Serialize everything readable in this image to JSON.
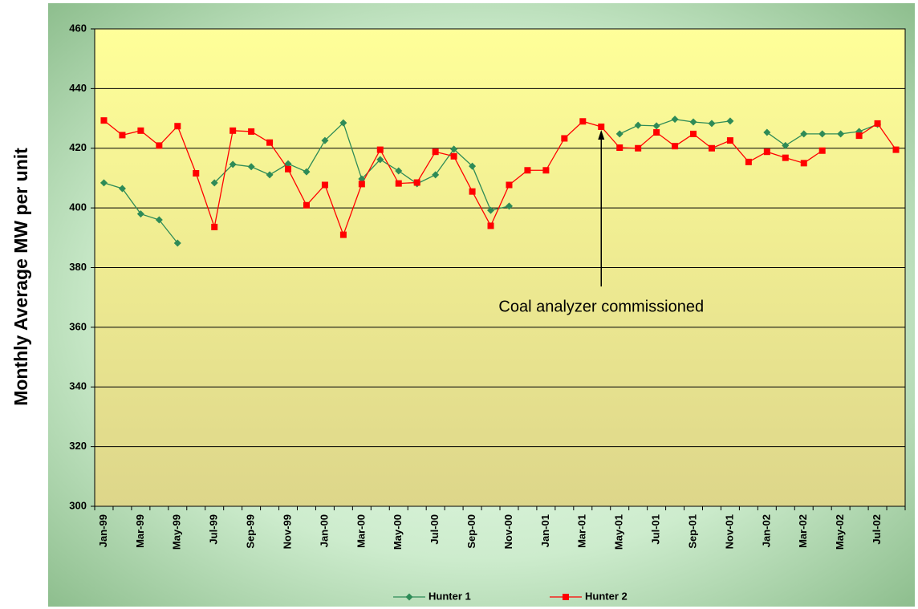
{
  "chart_data": {
    "type": "line",
    "y_label": "Monthly Average MW per unit",
    "annotation": "Coal analyzer commissioned",
    "categories": [
      "Jan-99",
      null,
      "Mar-99",
      null,
      "May-99",
      null,
      "Jul-99",
      null,
      "Sep-99",
      null,
      "Nov-99",
      null,
      "Jan-00",
      null,
      "Mar-00",
      null,
      "May-00",
      null,
      "Jul-00",
      null,
      "Sep-00",
      null,
      "Nov-00",
      null,
      "Jan-01",
      null,
      "Mar-01",
      null,
      "May-01",
      null,
      "Jul-01",
      null,
      "Sep-01",
      null,
      "Nov-01",
      null,
      "Jan-02",
      null,
      "Mar-02",
      null,
      "May-02",
      null,
      "Jul-02",
      null
    ],
    "series": [
      {
        "name": "Hunter 1",
        "color": "#2e8b57",
        "marker": "diamond",
        "values": [
          408.4,
          406.5,
          398,
          396,
          388.2,
          null,
          408.4,
          414.6,
          413.8,
          411.1,
          414.8,
          412.1,
          422.6,
          428.5,
          409.7,
          416.2,
          412.4,
          408.1,
          411.1,
          419.7,
          414,
          399.2,
          400.6,
          null,
          null,
          null,
          null,
          null,
          424.8,
          427.7,
          427.5,
          429.7,
          428.8,
          428.3,
          429.1,
          null,
          425.3,
          420.9,
          424.8,
          424.8,
          424.8,
          425.6,
          428,
          null
        ]
      },
      {
        "name": "Hunter 2",
        "color": "#ff0000",
        "marker": "square",
        "values": [
          429.3,
          424.4,
          425.9,
          420.9,
          427.4,
          411.6,
          393.6,
          425.9,
          425.6,
          421.9,
          413,
          400.9,
          407.7,
          391,
          408,
          419.5,
          408.2,
          408.5,
          418.8,
          417.3,
          405.5,
          394,
          407.7,
          412.6,
          412.6,
          423.3,
          429,
          427.2,
          420.2,
          420,
          425.3,
          420.7,
          424.8,
          420,
          422.6,
          415.4,
          418.8,
          416.8,
          415,
          419.2,
          null,
          424.2,
          428.3,
          419.5
        ]
      }
    ],
    "annotation_index": 27.5,
    "ylim": [
      300,
      460
    ],
    "yticks": [
      300,
      320,
      340,
      360,
      380,
      400,
      420,
      440,
      460
    ],
    "grid": true,
    "legend": "bottom"
  }
}
